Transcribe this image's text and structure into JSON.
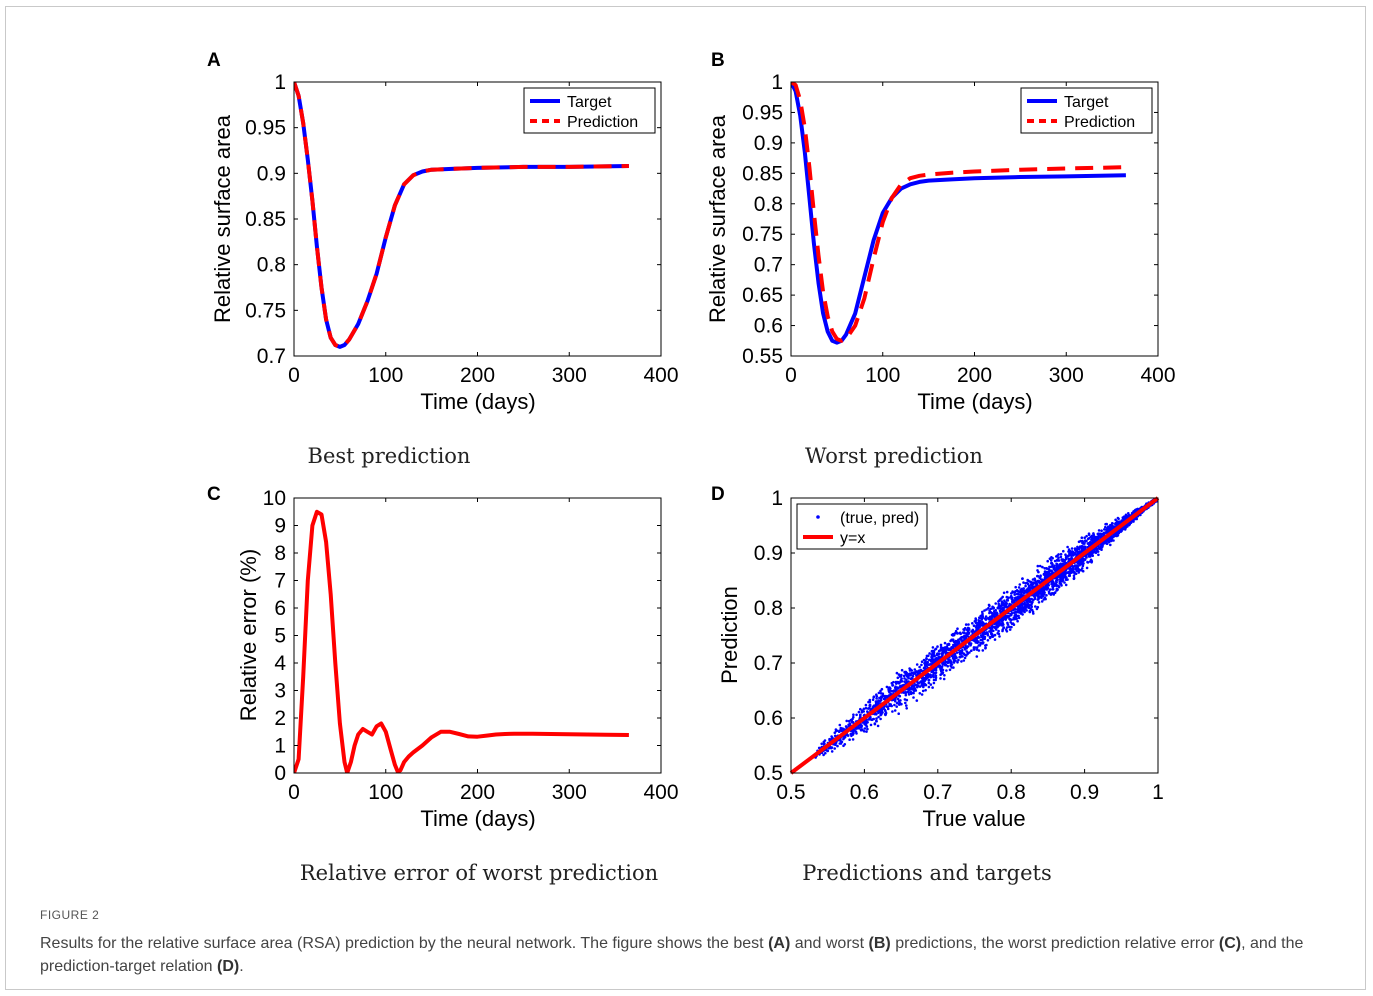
{
  "figure": {
    "label": "FIGURE 2",
    "caption_parts": [
      {
        "t": "Results for the relative surface area (RSA) prediction by the neural network. The figure shows the best ",
        "b": false
      },
      {
        "t": "(A)",
        "b": true
      },
      {
        "t": " and worst ",
        "b": false
      },
      {
        "t": "(B)",
        "b": true
      },
      {
        "t": " predictions, the worst prediction relative error ",
        "b": false
      },
      {
        "t": "(C)",
        "b": true
      },
      {
        "t": ", and the prediction-target relation ",
        "b": false
      },
      {
        "t": "(D)",
        "b": true
      },
      {
        "t": ".",
        "b": false
      }
    ]
  },
  "chart_data": [
    {
      "panel": "A",
      "type": "line",
      "subcaption": "Best prediction",
      "xlabel": "Time (days)",
      "ylabel": "Relative surface area",
      "xlim": [
        0,
        400
      ],
      "ylim": [
        0.7,
        1.0
      ],
      "xticks": [
        0,
        100,
        200,
        300,
        400
      ],
      "xtick_labels": [
        "0",
        "100",
        "200",
        "300",
        "400"
      ],
      "yticks": [
        0.7,
        0.75,
        0.8,
        0.85,
        0.9,
        0.95,
        1.0
      ],
      "ytick_labels": [
        "0.7",
        "0.75",
        "0.8",
        "0.85",
        "0.9",
        "0.95",
        "1"
      ],
      "grid": false,
      "legend_position": "top-right",
      "series": [
        {
          "name": "Target",
          "color": "#0000ff",
          "style": "solid",
          "x": [
            0,
            5,
            10,
            15,
            20,
            25,
            30,
            35,
            40,
            45,
            50,
            55,
            60,
            70,
            80,
            90,
            100,
            110,
            120,
            130,
            140,
            150,
            175,
            200,
            250,
            300,
            365
          ],
          "y": [
            1.0,
            0.985,
            0.955,
            0.915,
            0.87,
            0.82,
            0.775,
            0.74,
            0.72,
            0.712,
            0.71,
            0.712,
            0.718,
            0.735,
            0.76,
            0.79,
            0.83,
            0.865,
            0.888,
            0.898,
            0.902,
            0.904,
            0.905,
            0.906,
            0.907,
            0.907,
            0.908
          ]
        },
        {
          "name": "Prediction",
          "color": "#ff0000",
          "style": "dashed",
          "x": [
            0,
            5,
            10,
            15,
            20,
            25,
            30,
            35,
            40,
            45,
            50,
            55,
            60,
            70,
            80,
            90,
            100,
            110,
            120,
            130,
            140,
            150,
            175,
            200,
            250,
            300,
            365
          ],
          "y": [
            1.0,
            0.985,
            0.955,
            0.915,
            0.87,
            0.82,
            0.775,
            0.74,
            0.72,
            0.712,
            0.71,
            0.712,
            0.718,
            0.735,
            0.76,
            0.79,
            0.83,
            0.865,
            0.888,
            0.898,
            0.902,
            0.904,
            0.905,
            0.906,
            0.907,
            0.907,
            0.908
          ]
        }
      ]
    },
    {
      "panel": "B",
      "type": "line",
      "subcaption": "Worst prediction",
      "xlabel": "Time (days)",
      "ylabel": "Relative surface area",
      "xlim": [
        0,
        400
      ],
      "ylim": [
        0.55,
        1.0
      ],
      "xticks": [
        0,
        100,
        200,
        300,
        400
      ],
      "xtick_labels": [
        "0",
        "100",
        "200",
        "300",
        "400"
      ],
      "yticks": [
        0.55,
        0.6,
        0.65,
        0.7,
        0.75,
        0.8,
        0.85,
        0.9,
        0.95,
        1.0
      ],
      "ytick_labels": [
        "0.55",
        "0.6",
        "0.65",
        "0.7",
        "0.75",
        "0.8",
        "0.85",
        "0.9",
        "0.95",
        "1"
      ],
      "grid": false,
      "legend_position": "top-right",
      "series": [
        {
          "name": "Target",
          "color": "#0000ff",
          "style": "solid",
          "x": [
            0,
            5,
            10,
            15,
            20,
            25,
            30,
            35,
            40,
            45,
            50,
            55,
            60,
            70,
            80,
            90,
            100,
            110,
            120,
            130,
            140,
            150,
            175,
            200,
            250,
            300,
            365
          ],
          "y": [
            1.0,
            0.985,
            0.945,
            0.885,
            0.81,
            0.735,
            0.67,
            0.62,
            0.59,
            0.575,
            0.572,
            0.575,
            0.585,
            0.62,
            0.68,
            0.74,
            0.785,
            0.81,
            0.825,
            0.832,
            0.836,
            0.838,
            0.84,
            0.842,
            0.844,
            0.845,
            0.847
          ]
        },
        {
          "name": "Prediction",
          "color": "#ff0000",
          "style": "dashed",
          "x": [
            0,
            5,
            10,
            15,
            20,
            25,
            30,
            35,
            40,
            45,
            50,
            55,
            60,
            70,
            80,
            90,
            100,
            110,
            120,
            130,
            140,
            150,
            175,
            200,
            250,
            300,
            365
          ],
          "y": [
            1.0,
            0.995,
            0.97,
            0.925,
            0.86,
            0.785,
            0.715,
            0.655,
            0.615,
            0.59,
            0.578,
            0.575,
            0.578,
            0.6,
            0.645,
            0.71,
            0.77,
            0.81,
            0.832,
            0.842,
            0.846,
            0.848,
            0.851,
            0.853,
            0.856,
            0.858,
            0.86
          ]
        }
      ]
    },
    {
      "panel": "C",
      "type": "line",
      "subcaption": "Relative error of worst prediction",
      "xlabel": "Time (days)",
      "ylabel": "Relative error (%)",
      "xlim": [
        0,
        400
      ],
      "ylim": [
        0,
        10
      ],
      "xticks": [
        0,
        100,
        200,
        300,
        400
      ],
      "xtick_labels": [
        "0",
        "100",
        "200",
        "300",
        "400"
      ],
      "yticks": [
        0,
        1,
        2,
        3,
        4,
        5,
        6,
        7,
        8,
        9,
        10
      ],
      "ytick_labels": [
        "0",
        "1",
        "2",
        "3",
        "4",
        "5",
        "6",
        "7",
        "8",
        "9",
        "10"
      ],
      "grid": false,
      "series": [
        {
          "name": "",
          "color": "#ff0000",
          "style": "solid",
          "x": [
            0,
            5,
            10,
            15,
            20,
            25,
            30,
            35,
            40,
            45,
            50,
            55,
            58,
            62,
            66,
            70,
            75,
            80,
            85,
            90,
            95,
            100,
            105,
            110,
            113,
            116,
            120,
            125,
            130,
            140,
            150,
            160,
            170,
            180,
            190,
            200,
            210,
            220,
            230,
            240,
            260,
            280,
            300,
            320,
            340,
            365
          ],
          "y": [
            0,
            0.5,
            3.5,
            7.0,
            9.0,
            9.5,
            9.4,
            8.4,
            6.5,
            4.0,
            1.8,
            0.4,
            0.0,
            0.4,
            1.0,
            1.4,
            1.6,
            1.5,
            1.4,
            1.7,
            1.8,
            1.5,
            0.9,
            0.3,
            0.05,
            0.1,
            0.4,
            0.6,
            0.75,
            1.0,
            1.3,
            1.5,
            1.5,
            1.42,
            1.33,
            1.32,
            1.36,
            1.4,
            1.42,
            1.43,
            1.43,
            1.42,
            1.41,
            1.4,
            1.39,
            1.38
          ]
        }
      ]
    },
    {
      "panel": "D",
      "type": "scatter",
      "subcaption": "Predictions and targets",
      "xlabel": "True value",
      "ylabel": "Prediction",
      "xlim": [
        0.5,
        1.0
      ],
      "ylim": [
        0.5,
        1.0
      ],
      "xticks": [
        0.5,
        0.6,
        0.7,
        0.8,
        0.9,
        1.0
      ],
      "xtick_labels": [
        "0.5",
        "0.6",
        "0.7",
        "0.8",
        "0.9",
        "1"
      ],
      "yticks": [
        0.5,
        0.6,
        0.7,
        0.8,
        0.9,
        1.0
      ],
      "ytick_labels": [
        "0.5",
        "0.6",
        "0.7",
        "0.8",
        "0.9",
        "1"
      ],
      "grid": false,
      "legend_position": "top-left",
      "scatter_series": {
        "name": "(true, pred)",
        "color": "#0000ff",
        "count": 3500,
        "true_range": [
          0.53,
          1.0
        ],
        "band_halfwidth_center": 0.045
      },
      "line_series": {
        "name": "y=x",
        "color": "#ff0000",
        "x": [
          0.5,
          1.0
        ],
        "y": [
          0.5,
          1.0
        ]
      }
    }
  ]
}
